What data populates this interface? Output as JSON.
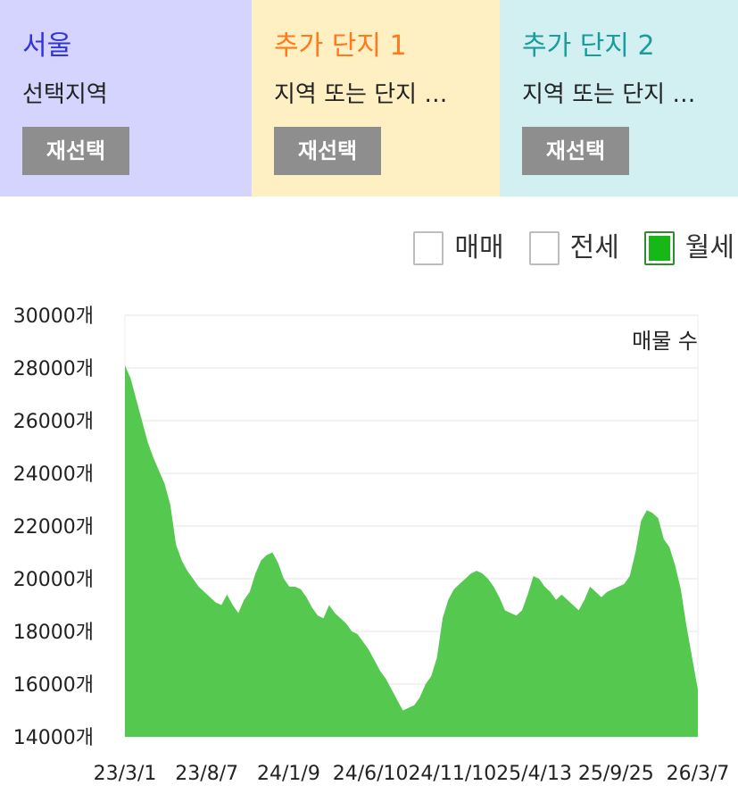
{
  "panels": [
    {
      "title": "서울",
      "subtitle": "선택지역",
      "button": "재선택",
      "title_color": "#3333dd",
      "bg": "#d4d4ff"
    },
    {
      "title": "추가 단지 1",
      "subtitle": "지역 또는 단지 …",
      "button": "재선택",
      "title_color": "#ff7a1a",
      "bg": "#fff0c4"
    },
    {
      "title": "추가 단지 2",
      "subtitle": "지역 또는 단지 …",
      "button": "재선택",
      "title_color": "#1a9c9c",
      "bg": "#d2eff2"
    }
  ],
  "legend": [
    {
      "label": "매매",
      "checked": false
    },
    {
      "label": "전세",
      "checked": false
    },
    {
      "label": "월세",
      "checked": true
    }
  ],
  "chart_data": {
    "type": "area",
    "annotation": "매물 수",
    "ylim": [
      14000,
      30000
    ],
    "yticks": [
      "30000개",
      "28000개",
      "26000개",
      "24000개",
      "22000개",
      "20000개",
      "18000개",
      "16000개",
      "14000개"
    ],
    "xticks": [
      "23/3/1",
      "23/8/7",
      "24/1/9",
      "24/6/10",
      "24/11/10",
      "25/4/13",
      "25/9/25",
      "26/3/7"
    ],
    "grid": true,
    "color": "#55c94f",
    "series": [
      {
        "values": [
          28100,
          27600,
          26800,
          26000,
          25200,
          24600,
          24100,
          23600,
          22800,
          21300,
          20700,
          20300,
          20000,
          19700,
          19500,
          19300,
          19100,
          19000,
          19400,
          19000,
          18700,
          19200,
          19500,
          20200,
          20700,
          20900,
          21000,
          20600,
          20000,
          19700,
          19700,
          19600,
          19300,
          18900,
          18600,
          18500,
          19000,
          18700,
          18500,
          18300,
          18000,
          17900,
          17600,
          17300,
          16900,
          16500,
          16200,
          15800,
          15400,
          15000,
          15100,
          15200,
          15500,
          16000,
          16300,
          17000,
          18500,
          19200,
          19600,
          19800,
          20000,
          20200,
          20300,
          20200,
          20000,
          19700,
          19300,
          18800,
          18700,
          18600,
          18800,
          19400,
          20100,
          20000,
          19700,
          19500,
          19200,
          19400,
          19200,
          19000,
          18800,
          19200,
          19700,
          19500,
          19300,
          19500,
          19600,
          19700,
          19800,
          20100,
          21000,
          22200,
          22600,
          22500,
          22300,
          21500,
          21200,
          20500,
          19600,
          18200,
          17000,
          15800
        ]
      }
    ]
  }
}
